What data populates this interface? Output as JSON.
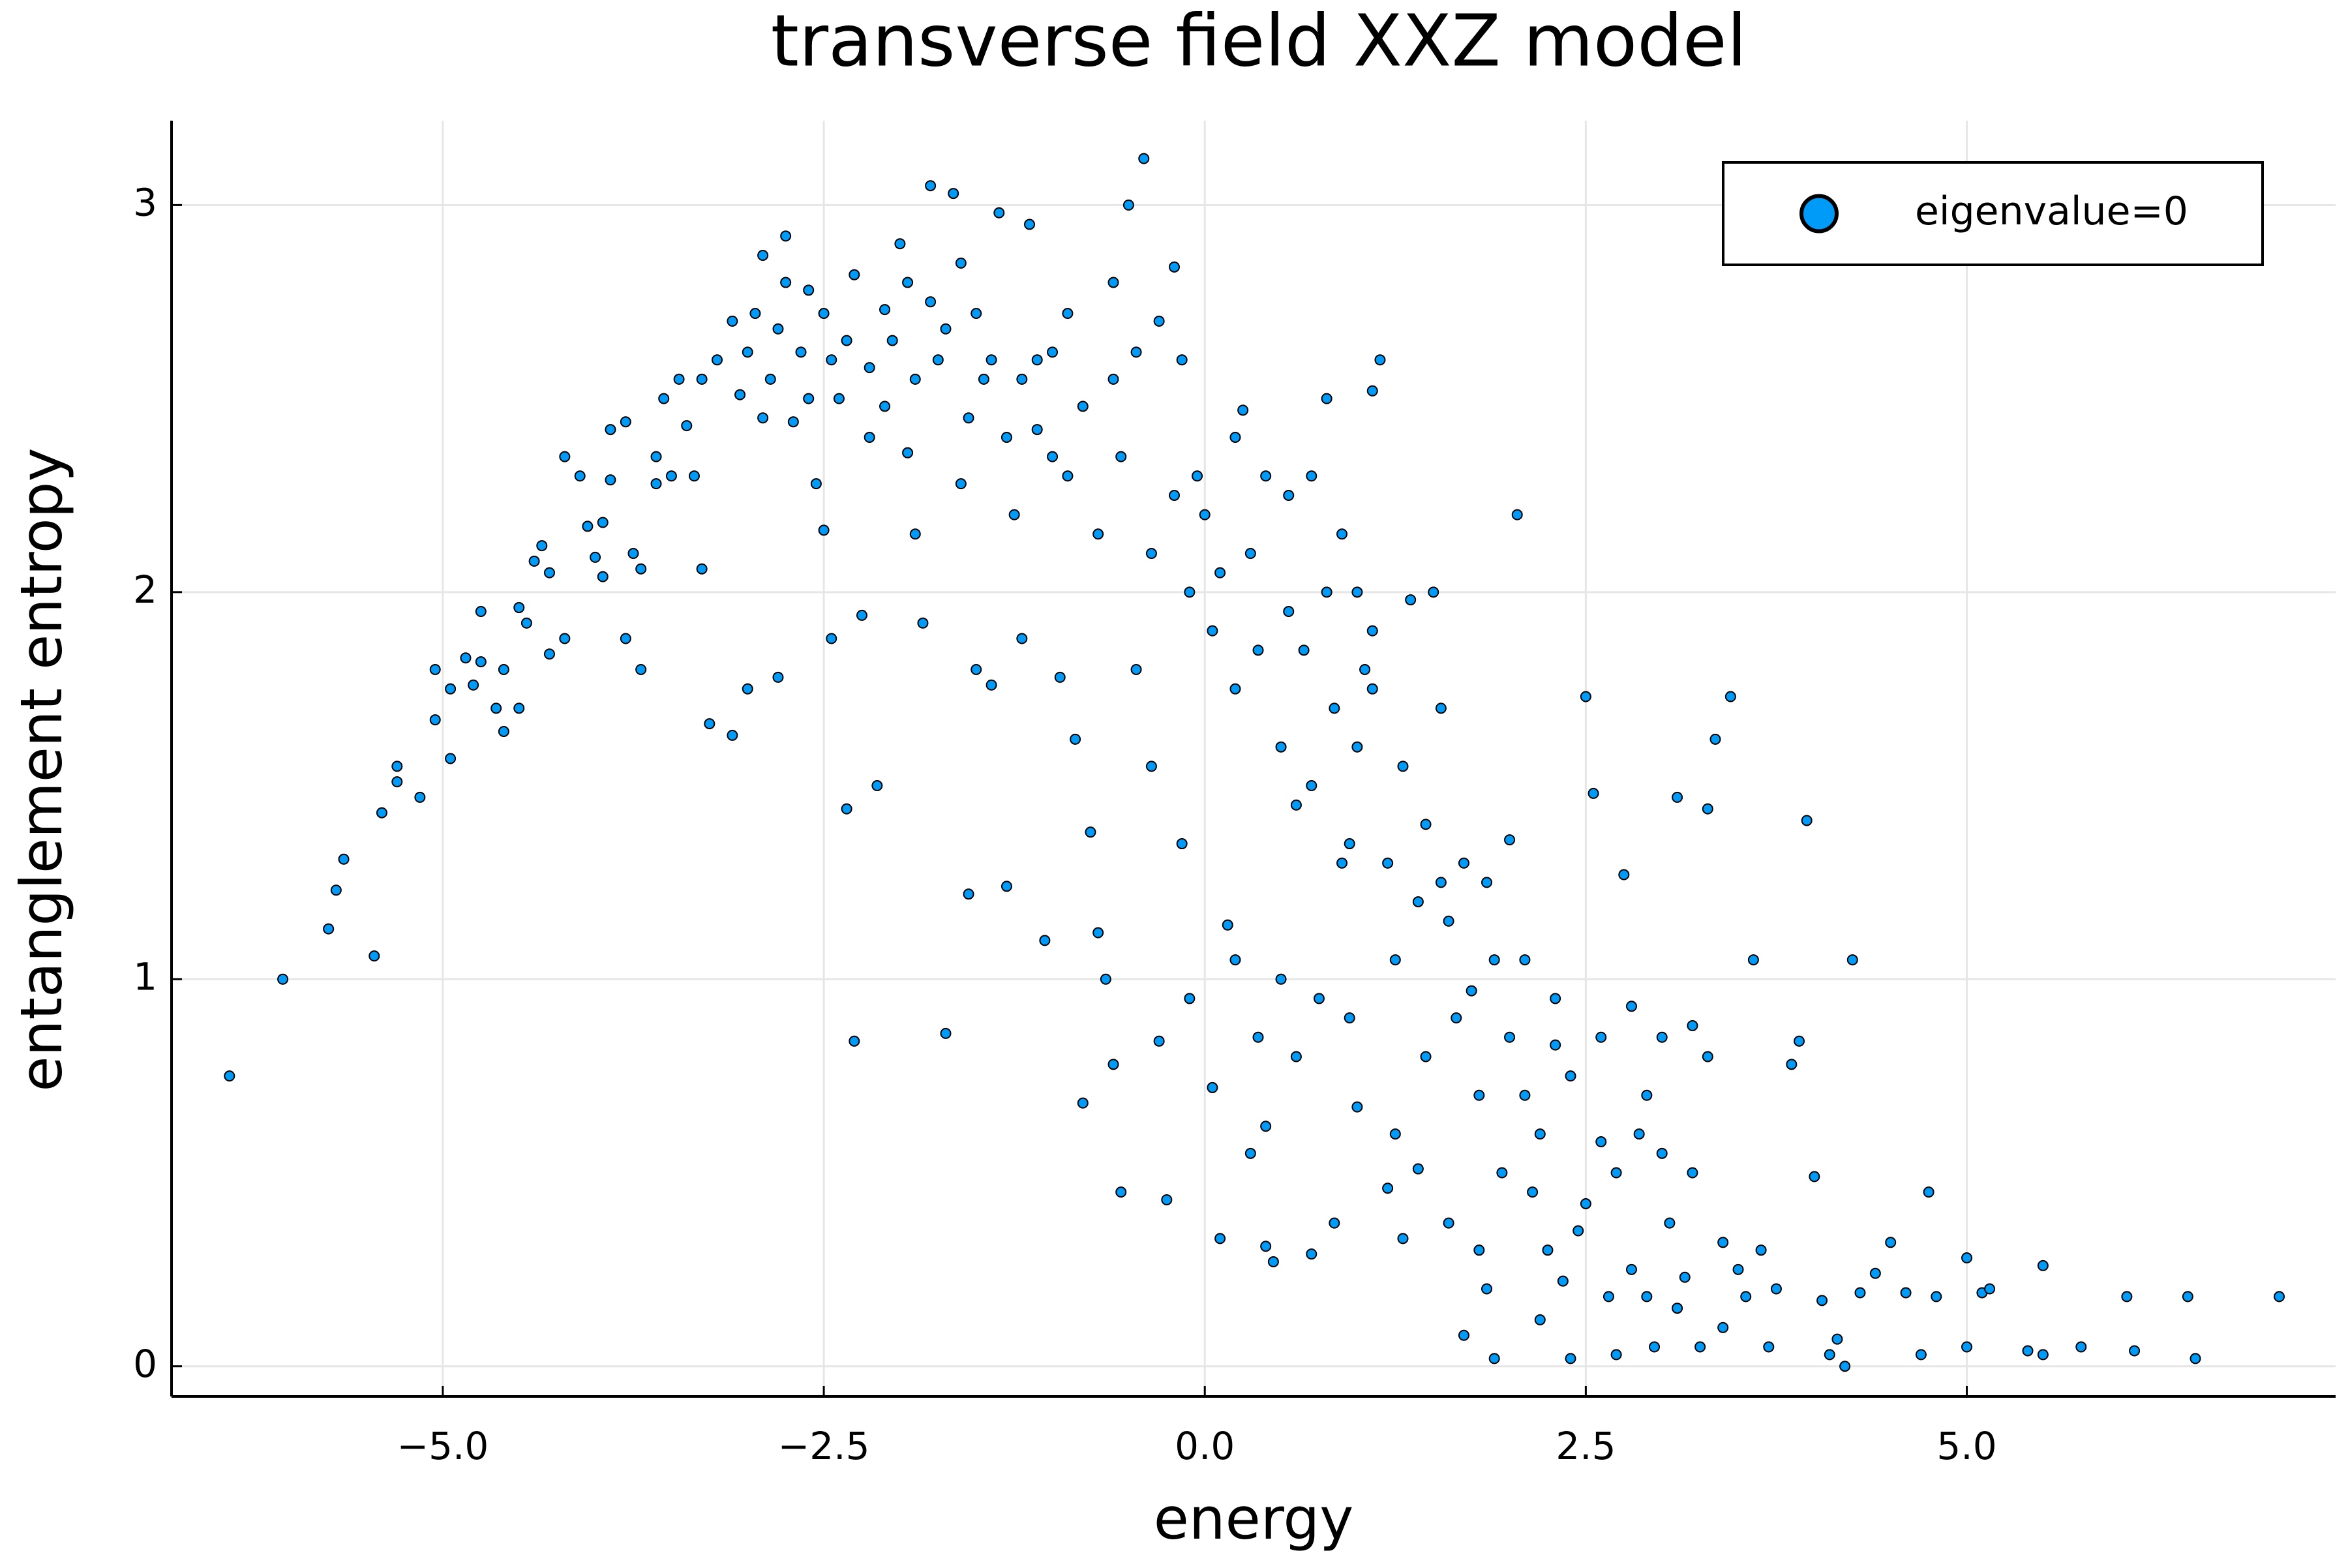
{
  "chart_data": {
    "type": "scatter",
    "title": "transverse field XXZ model",
    "x_label": "energy",
    "y_label": "entanglement entropy",
    "xlim": [
      -6.78,
      7.42
    ],
    "ylim": [
      -0.078,
      3.218
    ],
    "xticks": [
      {
        "value": -5,
        "label": "−5.0"
      },
      {
        "value": -2.5,
        "label": "−2.5"
      },
      {
        "value": 0,
        "label": "0.0"
      },
      {
        "value": 2.5,
        "label": "2.5"
      },
      {
        "value": 5,
        "label": "5.0"
      }
    ],
    "yticks": [
      0,
      1,
      2,
      3
    ],
    "grid": true,
    "legend_position": "top-right",
    "series": [
      {
        "name": "eigenvalue=0",
        "color": "#009af9",
        "x": [
          -6.4,
          -6.05,
          -5.75,
          -5.7,
          -5.65,
          -5.45,
          -5.4,
          -5.3,
          -5.3,
          -5.15,
          -5.05,
          -5.05,
          -4.95,
          -4.95,
          -4.85,
          -4.75,
          -4.8,
          -4.75,
          -4.65,
          -4.6,
          -4.6,
          -4.5,
          -4.45,
          -4.4,
          -4.35,
          -4.3,
          -4.2,
          -4.1,
          -4.05,
          -4.0,
          -3.95,
          -3.95,
          -3.9,
          -3.8,
          -3.8,
          -3.75,
          -3.7,
          -3.7,
          -3.6,
          -3.55,
          -3.5,
          -3.4,
          -3.3,
          -3.25,
          -3.2,
          -3.1,
          -3.05,
          -3.0,
          -2.95,
          -2.9,
          -2.85,
          -2.8,
          -2.75,
          -2.7,
          -2.65,
          -2.6,
          -2.55,
          -2.5,
          -2.45,
          -2.4,
          -2.35,
          -2.3,
          -2.25,
          -2.2,
          -2.15,
          -2.1,
          -2.0,
          -1.95,
          -1.9,
          -1.85,
          -1.8,
          -1.75,
          -1.7,
          -1.65,
          -1.6,
          -1.55,
          -1.5,
          -1.45,
          -1.4,
          -1.35,
          -1.3,
          -1.25,
          -1.2,
          -1.15,
          -1.1,
          -1.05,
          -1.0,
          -0.95,
          -0.9,
          -0.85,
          -0.8,
          -0.75,
          -0.7,
          -0.65,
          -0.6,
          -0.55,
          -0.5,
          -0.45,
          -0.4,
          -0.35,
          -0.3,
          -0.25,
          -0.2,
          -0.15,
          -0.1,
          -0.05,
          0.05,
          0.1,
          0.15,
          0.2,
          0.25,
          0.3,
          0.35,
          0.4,
          0.45,
          0.5,
          0.55,
          0.6,
          0.7,
          0.75,
          0.8,
          0.85,
          0.9,
          0.95,
          1.0,
          1.05,
          1.1,
          1.15,
          1.2,
          1.25,
          1.3,
          1.35,
          1.4,
          1.45,
          1.5,
          1.55,
          1.6,
          1.7,
          1.75,
          1.8,
          1.85,
          1.9,
          1.95,
          2.0,
          2.05,
          2.1,
          2.15,
          2.2,
          2.25,
          2.3,
          2.35,
          2.4,
          2.45,
          2.5,
          2.55,
          2.6,
          2.65,
          2.7,
          2.75,
          2.8,
          2.85,
          2.9,
          2.95,
          3.0,
          3.05,
          3.1,
          3.15,
          3.2,
          3.25,
          3.3,
          3.35,
          3.4,
          3.45,
          3.5,
          3.55,
          3.6,
          3.65,
          3.7,
          3.75,
          3.85,
          3.9,
          3.95,
          4.0,
          4.05,
          4.1,
          4.15,
          4.2,
          4.25,
          4.3,
          4.4,
          4.5,
          4.6,
          4.7,
          4.75,
          4.8,
          5.0,
          5.0,
          5.1,
          5.15,
          5.4,
          5.5,
          5.5,
          5.75,
          6.05,
          6.1,
          6.45,
          6.5,
          7.05,
          -3.3,
          -3.1,
          -3.0,
          -2.9,
          -2.8,
          -2.75,
          -2.6,
          -2.5,
          -2.45,
          -2.35,
          -2.3,
          -2.2,
          -2.1,
          -2.05,
          -1.95,
          -1.9,
          -1.8,
          -1.7,
          -1.6,
          -1.55,
          -1.5,
          -1.4,
          -1.3,
          -1.2,
          -1.1,
          -1.0,
          -0.9,
          -0.8,
          -0.7,
          -0.6,
          -0.55,
          -0.45,
          -0.35,
          -0.3,
          -0.2,
          -0.1,
          0.0,
          0.05,
          0.1,
          0.2,
          0.3,
          0.35,
          0.4,
          0.5,
          0.55,
          0.65,
          0.7,
          0.8,
          0.85,
          0.95,
          1.0,
          1.1,
          1.2,
          1.25,
          1.3,
          1.4,
          1.45,
          1.55,
          1.6,
          1.65,
          1.7,
          1.8,
          1.85,
          1.9,
          2.0,
          2.1,
          2.2,
          2.3,
          2.4,
          2.5,
          2.6,
          2.7,
          2.8,
          2.9,
          3.0,
          3.1,
          3.2,
          3.3,
          3.4,
          0.6,
          0.4,
          -0.6,
          -0.15,
          0.2,
          0.7,
          0.9,
          1.0,
          1.1,
          -4.2,
          -3.9,
          -3.6,
          -3.45,
          -3.35,
          -4.5,
          -4.3
        ],
        "values": [
          0.75,
          1.0,
          1.13,
          1.23,
          1.31,
          1.06,
          1.43,
          1.51,
          1.55,
          1.47,
          1.67,
          1.8,
          1.57,
          1.75,
          1.83,
          1.95,
          1.76,
          1.82,
          1.7,
          1.8,
          1.64,
          1.7,
          1.92,
          2.08,
          2.12,
          1.84,
          1.88,
          2.3,
          2.17,
          2.09,
          2.04,
          2.18,
          2.29,
          2.44,
          1.88,
          2.1,
          2.06,
          1.8,
          2.28,
          2.5,
          2.3,
          2.43,
          2.06,
          1.66,
          2.6,
          1.63,
          2.51,
          1.75,
          2.72,
          2.87,
          2.55,
          1.78,
          2.92,
          2.44,
          2.62,
          2.78,
          2.28,
          2.16,
          1.88,
          2.5,
          1.44,
          0.84,
          1.94,
          2.4,
          1.5,
          2.73,
          2.9,
          2.36,
          2.15,
          1.92,
          3.05,
          2.6,
          0.86,
          3.03,
          2.28,
          1.22,
          1.8,
          2.55,
          1.76,
          2.98,
          1.24,
          2.2,
          1.88,
          2.95,
          2.6,
          1.1,
          2.35,
          1.78,
          2.72,
          1.62,
          0.68,
          1.38,
          1.12,
          1.0,
          0.78,
          0.45,
          3.0,
          1.8,
          3.12,
          1.55,
          0.84,
          0.43,
          2.84,
          1.35,
          0.95,
          2.3,
          0.72,
          0.33,
          1.14,
          1.05,
          2.47,
          0.55,
          0.85,
          0.31,
          0.27,
          1.0,
          2.25,
          1.45,
          0.29,
          0.95,
          2.5,
          0.37,
          1.3,
          0.9,
          0.67,
          1.8,
          2.52,
          2.6,
          0.46,
          0.6,
          0.33,
          1.98,
          0.51,
          0.8,
          2.0,
          1.25,
          0.37,
          0.08,
          0.97,
          0.3,
          0.2,
          0.02,
          0.5,
          1.36,
          2.2,
          0.7,
          0.45,
          0.12,
          0.3,
          0.83,
          0.22,
          0.02,
          0.35,
          1.73,
          1.48,
          0.58,
          0.18,
          0.03,
          1.27,
          0.93,
          0.6,
          0.18,
          0.05,
          0.85,
          0.37,
          1.47,
          0.23,
          0.88,
          0.05,
          1.44,
          1.62,
          0.32,
          1.73,
          0.25,
          0.18,
          1.05,
          0.3,
          0.05,
          0.2,
          0.78,
          0.84,
          1.41,
          0.49,
          0.17,
          0.03,
          0.07,
          0.0,
          1.05,
          0.19,
          0.24,
          0.32,
          0.19,
          0.03,
          0.45,
          0.18,
          0.05,
          0.28,
          0.19,
          0.2,
          0.04,
          0.26,
          0.03,
          0.05,
          0.18,
          0.04,
          0.18,
          0.02,
          0.18,
          2.55,
          2.7,
          2.62,
          2.45,
          2.68,
          2.8,
          2.5,
          2.72,
          2.6,
          2.65,
          2.82,
          2.58,
          2.48,
          2.65,
          2.8,
          2.55,
          2.75,
          2.68,
          2.85,
          2.45,
          2.72,
          2.6,
          2.4,
          2.55,
          2.42,
          2.62,
          2.3,
          2.48,
          2.15,
          2.55,
          2.35,
          2.62,
          2.1,
          2.7,
          2.25,
          2.0,
          2.2,
          1.9,
          2.05,
          1.75,
          2.1,
          1.85,
          2.3,
          1.6,
          1.95,
          1.85,
          1.5,
          2.0,
          1.7,
          1.35,
          1.6,
          1.75,
          1.3,
          1.05,
          1.55,
          1.2,
          1.4,
          1.7,
          1.15,
          0.9,
          1.3,
          0.7,
          1.25,
          1.05,
          0.85,
          1.05,
          0.6,
          0.95,
          0.75,
          0.42,
          0.85,
          0.5,
          0.25,
          0.7,
          0.55,
          0.15,
          0.5,
          0.8,
          0.1,
          0.8,
          0.62,
          2.8,
          2.6,
          2.4,
          2.3,
          2.15,
          2.0,
          1.9,
          2.35,
          2.42,
          2.35,
          2.55,
          2.3,
          1.96,
          2.05
        ]
      }
    ]
  }
}
